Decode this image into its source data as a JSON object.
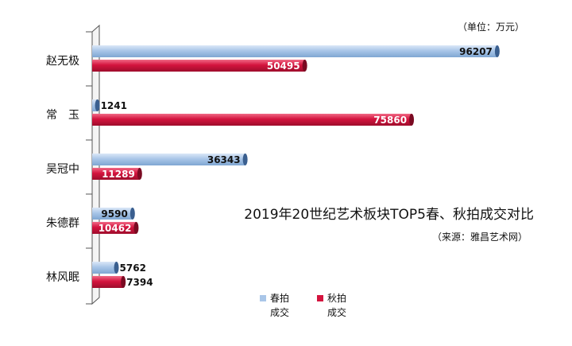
{
  "chart_data": {
    "type": "bar",
    "orientation": "horizontal",
    "title": "2019年20世纪艺术板块TOP5春、秋拍成交对比",
    "unit_note": "（单位：万元）",
    "source_note": "（来源：雅昌艺术网）",
    "categories": [
      "赵无极",
      "常　玉",
      "吴冠中",
      "朱德群",
      "林风眠"
    ],
    "series": [
      {
        "name": "春拍成交",
        "legend_lines": [
          "春拍",
          "成交"
        ],
        "values": [
          96207,
          1241,
          36343,
          9590,
          5762
        ],
        "color": "#a9c6e8"
      },
      {
        "name": "秋拍成交",
        "legend_lines": [
          "秋拍",
          "成交"
        ],
        "values": [
          50495,
          75860,
          11289,
          10462,
          7394
        ],
        "color": "#d4143e"
      }
    ],
    "xlim": [
      0,
      100000
    ],
    "grid": false,
    "legend_position": "bottom"
  }
}
